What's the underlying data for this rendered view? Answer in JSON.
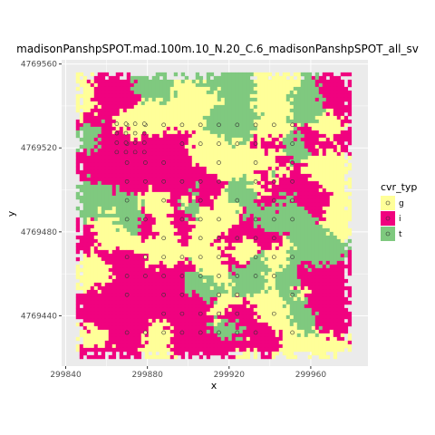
{
  "chart_data": {
    "type": "heatmap",
    "title": "madisonPanshpSPOT.mad.100m.10_N.20_C.6_madisonPanshpSPOT_all_sv",
    "xlabel": "x",
    "ylabel": "y",
    "xlim": [
      299838,
      299988
    ],
    "ylim": [
      4769416,
      4769562
    ],
    "x_ticks": [
      299840,
      299880,
      299920,
      299960
    ],
    "y_ticks": [
      4769440,
      4769480,
      4769520,
      4769560
    ],
    "x_tick_labels": [
      "299840",
      "299880",
      "299920",
      "299960"
    ],
    "y_tick_labels": [
      "4769440",
      "4769480",
      "4769520",
      "4769560"
    ],
    "grid": true,
    "panel_background": "#ebebeb",
    "legend": {
      "title": "cvr_typ",
      "position": "right",
      "entries": [
        {
          "label": "g",
          "fill": "#ffff99",
          "point": "#ffff99"
        },
        {
          "label": "i",
          "fill": "#f0027f",
          "point": "#f0027f"
        },
        {
          "label": "t",
          "fill": "#7fc97f",
          "point": "#7fc97f"
        }
      ]
    },
    "raster": {
      "x0": 299845,
      "x1": 299980,
      "y0": 4769420,
      "y1": 4769556,
      "classes": [
        "g",
        "i",
        "t"
      ],
      "colors": {
        "g": "#ffff99",
        "i": "#f0027f",
        "t": "#7fc97f"
      }
    },
    "points": {
      "grid_step": 4.5,
      "x_range": [
        299870,
        299958
      ],
      "y_range": [
        4769432,
        4769535
      ],
      "dense_block_x": [
        299865,
        299880
      ],
      "dense_block_y": [
        4769518,
        4769535
      ]
    }
  }
}
